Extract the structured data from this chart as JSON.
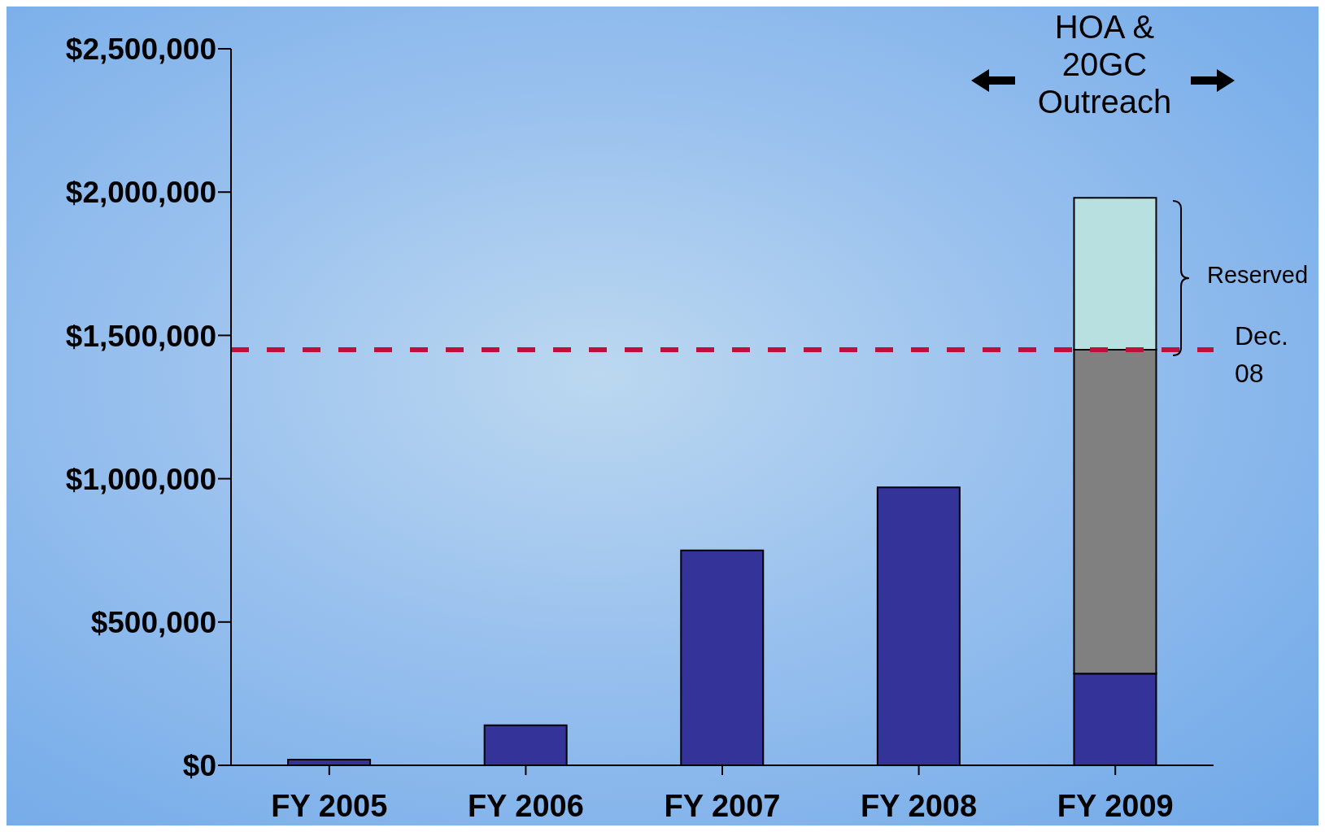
{
  "chart_data": {
    "type": "bar",
    "stacked": true,
    "categories": [
      "FY 2005",
      "FY 2006",
      "FY 2007",
      "FY 2008",
      "FY 2009"
    ],
    "series": [
      {
        "color": "#333399",
        "values": [
          20000,
          140000,
          750000,
          970000,
          320000
        ]
      },
      {
        "color": "#808080",
        "values": [
          null,
          null,
          null,
          null,
          1130000
        ]
      },
      {
        "color": "#b8e0e0",
        "values": [
          null,
          null,
          null,
          null,
          530000
        ]
      }
    ],
    "ylim": [
      0,
      2500000
    ],
    "yticks": [
      {
        "value": 0,
        "label": "$0"
      },
      {
        "value": 500000,
        "label": "$500,000"
      },
      {
        "value": 1000000,
        "label": "$1,000,000"
      },
      {
        "value": 1500000,
        "label": "$1,500,000"
      },
      {
        "value": 2000000,
        "label": "$2,000,000"
      },
      {
        "value": 2500000,
        "label": "$2,500,000"
      }
    ],
    "ref_lines": [
      {
        "axis": "y",
        "value": 1450000,
        "label": "Dec. 08",
        "color": "#c0103a",
        "line_style": "dashed"
      }
    ],
    "annotations": [
      "Reserved",
      "HOA & 20GC Outreach"
    ],
    "grid": false,
    "legend": false
  }
}
